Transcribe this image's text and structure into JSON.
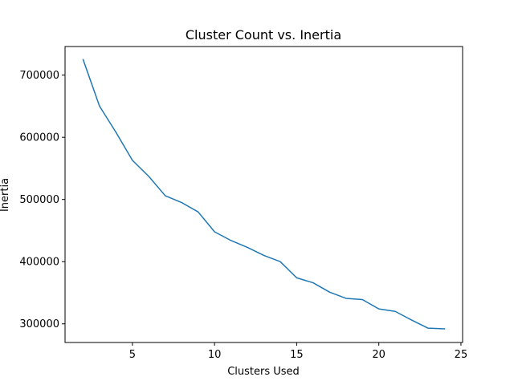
{
  "chart_data": {
    "type": "line",
    "title": "Cluster Count vs. Inertia",
    "xlabel": "Clusters Used",
    "ylabel": "Inertia",
    "xlim": [
      0.9,
      25.1
    ],
    "ylim": [
      270000,
      746000
    ],
    "grid": false,
    "x_ticks": [
      5,
      10,
      15,
      20,
      25
    ],
    "x_tick_labels": [
      "5",
      "10",
      "15",
      "20",
      "25"
    ],
    "y_ticks": [
      300000,
      400000,
      500000,
      600000,
      700000
    ],
    "y_tick_labels": [
      "300000",
      "400000",
      "500000",
      "600000",
      "700000"
    ],
    "series": [
      {
        "name": "inertia",
        "color": "#1f77b4",
        "x": [
          2,
          3,
          4,
          5,
          6,
          7,
          8,
          9,
          10,
          11,
          12,
          13,
          14,
          15,
          16,
          17,
          18,
          19,
          20,
          21,
          22,
          23,
          24
        ],
        "y": [
          725000,
          650000,
          608000,
          563000,
          537000,
          506000,
          495000,
          480000,
          448000,
          434000,
          423000,
          410000,
          400000,
          374000,
          366000,
          351000,
          341000,
          339000,
          324000,
          320000,
          306000,
          293000,
          292000
        ]
      }
    ]
  }
}
